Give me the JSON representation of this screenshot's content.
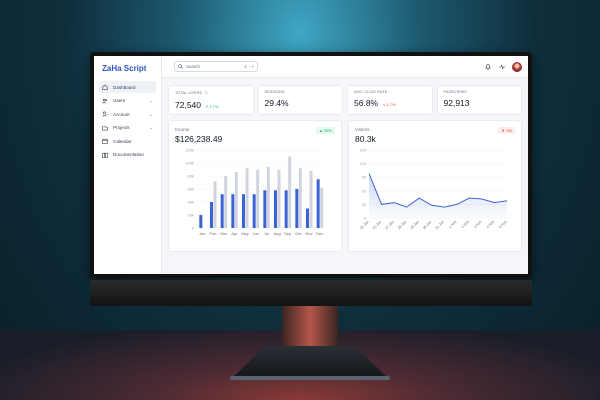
{
  "app": {
    "brand": "ZaHa Script"
  },
  "sidebar": {
    "items": [
      {
        "label": "Dashboard",
        "icon": "home-icon",
        "active": true,
        "has_chevron": false
      },
      {
        "label": "Users",
        "icon": "users-icon",
        "active": false,
        "has_chevron": true
      },
      {
        "label": "Account",
        "icon": "account-icon",
        "active": false,
        "has_chevron": true
      },
      {
        "label": "Projects",
        "icon": "folder-icon",
        "active": false,
        "has_chevron": true
      },
      {
        "label": "Calendar",
        "icon": "calendar-icon",
        "active": false,
        "has_chevron": false
      },
      {
        "label": "Documentation",
        "icon": "book-icon",
        "active": false,
        "has_chevron": false
      }
    ]
  },
  "topbar": {
    "search_placeholder": "Search",
    "shortcut": "⌘ + K"
  },
  "stats": [
    {
      "label": "TOTAL USERS",
      "value": "72,540",
      "delta": "1.7%",
      "direction": "up",
      "has_info": true
    },
    {
      "label": "SESSIONS",
      "value": "29.4%",
      "delta": "",
      "direction": "",
      "has_info": false
    },
    {
      "label": "AVG. CLICK RATE",
      "value": "56.8%",
      "delta": "1.7%",
      "direction": "down",
      "has_info": false
    },
    {
      "label": "PAGEVIEWS",
      "value": "92,913",
      "delta": "",
      "direction": "",
      "has_info": false
    }
  ],
  "income": {
    "title": "Income",
    "value": "$126,238.49",
    "badge": "25%",
    "badge_direction": "up"
  },
  "visitors": {
    "title": "Visitors",
    "value": "80.3k",
    "badge": "3%",
    "badge_direction": "down"
  },
  "colors": {
    "brand": "#2d55c4",
    "bar_primary": "#3b63d4",
    "bar_secondary": "#d0d5dd",
    "line": "#3b63d4",
    "up": "#12b76a",
    "down": "#f04438"
  },
  "chart_data": [
    {
      "type": "bar",
      "categories": [
        "Jan",
        "Feb",
        "Mar",
        "Apr",
        "May",
        "Jun",
        "Jul",
        "Aug",
        "Sep",
        "Oct",
        "Nov",
        "Dec"
      ],
      "series": [
        {
          "values": [
            20,
            40,
            52,
            52,
            52,
            52,
            58,
            58,
            58,
            60,
            30,
            75
          ]
        },
        {
          "values": [
            0,
            72,
            80,
            86,
            92,
            90,
            94,
            90,
            110,
            92,
            88,
            62
          ]
        }
      ],
      "ylim": [
        0,
        120
      ],
      "yticks": [
        "0",
        "20k",
        "40k",
        "60k",
        "80k",
        "100k",
        "120k"
      ],
      "grid": true
    },
    {
      "type": "area",
      "categories": [
        "25 Jan",
        "26 Jan",
        "27 Jan",
        "28 Jan",
        "29 Jan",
        "30 Jan",
        "31 Jan",
        "1 Feb",
        "2 Feb",
        "3 Feb",
        "4 Feb",
        "5 Feb"
      ],
      "values": [
        98,
        30,
        34,
        24,
        44,
        28,
        24,
        30,
        44,
        42,
        34,
        38
      ],
      "ylim": [
        0,
        150
      ],
      "yticks": [
        "0",
        "30",
        "60",
        "90",
        "120",
        "150"
      ],
      "grid": true
    }
  ]
}
